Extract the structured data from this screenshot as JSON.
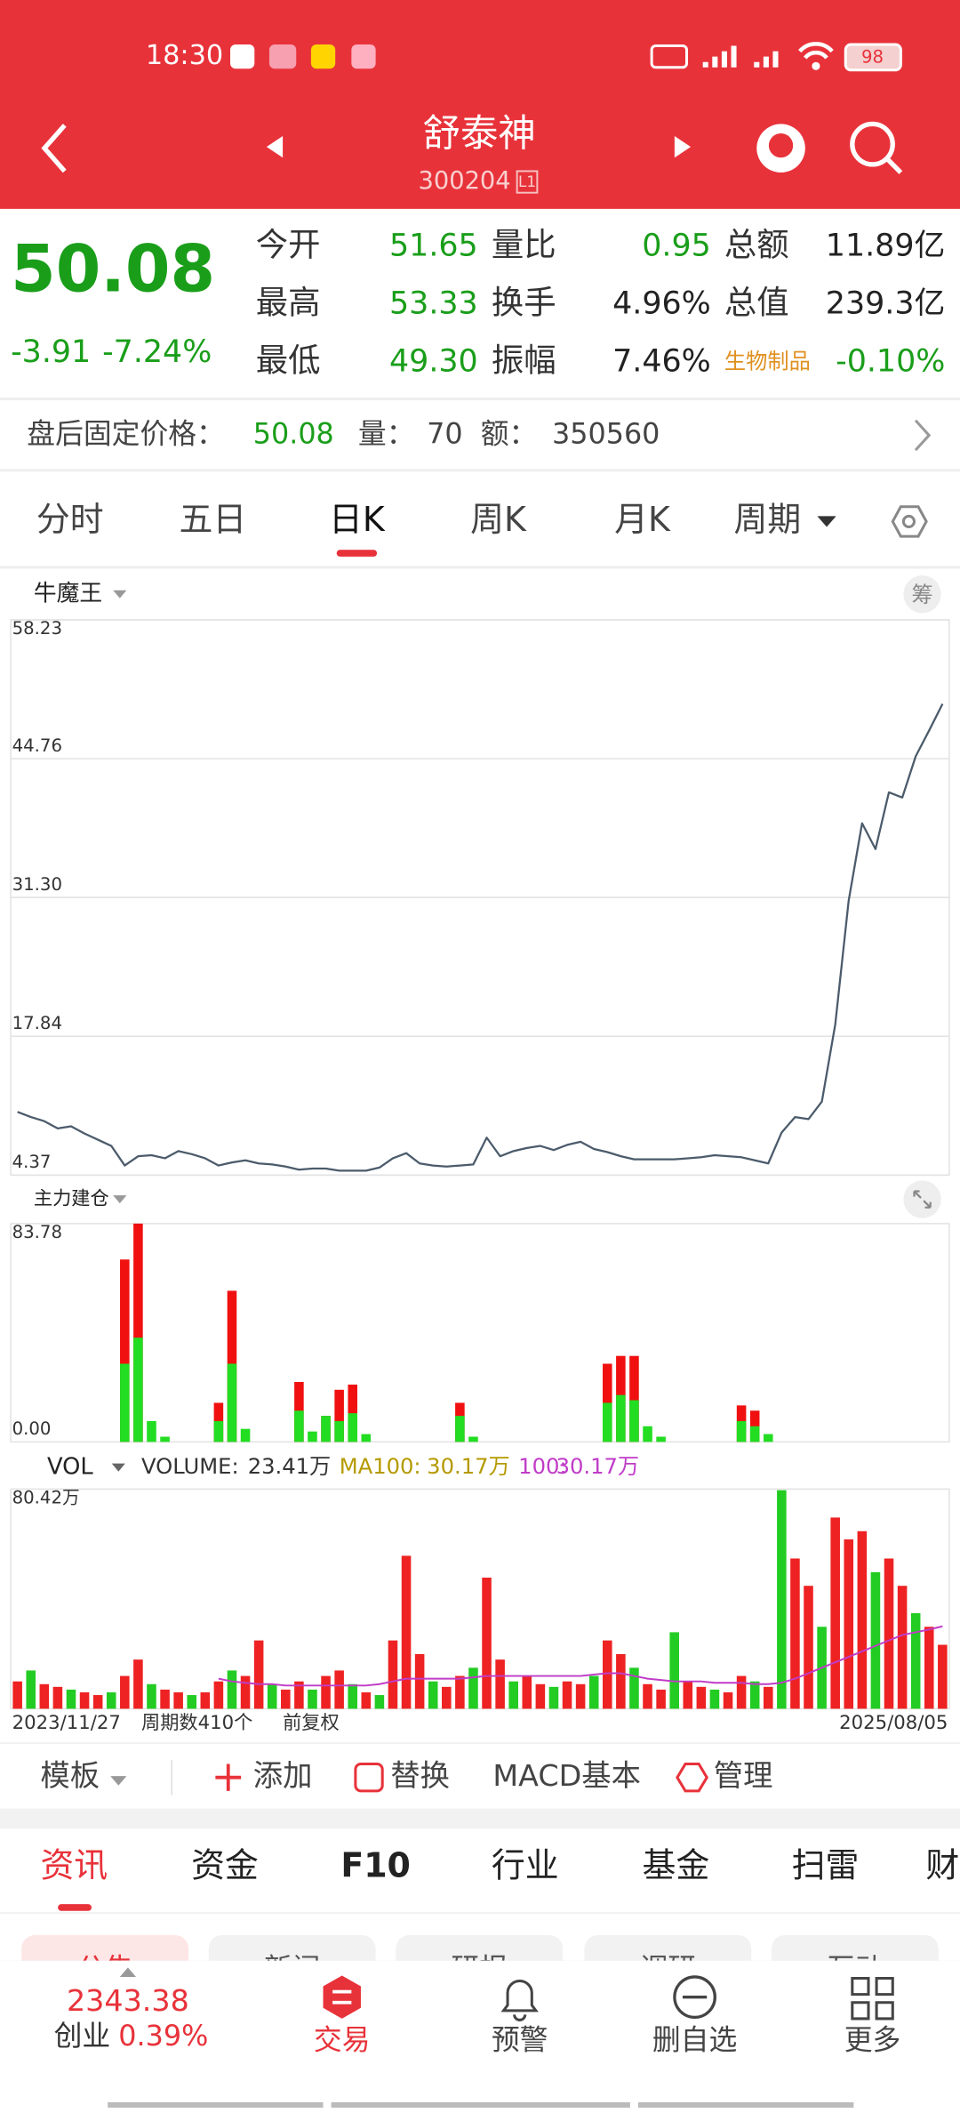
{
  "status_bar": {
    "time": "18:30",
    "battery": "98"
  },
  "header": {
    "title": "舒泰神",
    "code": "300204",
    "badge": "L1"
  },
  "quote": {
    "price": "50.08",
    "change": "-3.91",
    "change_pct": "-7.24%",
    "rows": [
      [
        {
          "label": "今开",
          "value": "51.65"
        },
        {
          "label": "量比",
          "value": "0.95"
        },
        {
          "label": "总额",
          "value": "11.89亿"
        }
      ],
      [
        {
          "label": "最高",
          "value": "53.33"
        },
        {
          "label": "换手",
          "value": "4.96%"
        },
        {
          "label": "总值",
          "value": "239.3亿"
        }
      ],
      [
        {
          "label": "最低",
          "value": "49.30"
        },
        {
          "label": "振幅",
          "value": "7.46%"
        },
        {
          "label": "生物制品",
          "value": "-0.10%"
        }
      ]
    ]
  },
  "after_hours": {
    "label": "盘后固定价格：",
    "price": "50.08",
    "volume_label": "量：",
    "volume": "70",
    "amount_label": "额：",
    "amount": "350560"
  },
  "period_tabs": [
    "分时",
    "五日",
    "日K",
    "周K",
    "月K",
    "周期"
  ],
  "chart_data": [
    {
      "type": "line",
      "indicator": "牛魔王",
      "badge": "筹",
      "color": "#4b5b6b",
      "grid": true,
      "ylim": [
        4.37,
        58.23
      ],
      "yticks": [
        4.37,
        17.84,
        {
          "value": 31.3,
          "label": "31.30"
        },
        44.76,
        58.23
      ],
      "values": [
        10.5,
        10.0,
        9.6,
        8.9,
        9.1,
        8.4,
        7.8,
        7.2,
        5.3,
        6.2,
        6.3,
        6.0,
        6.7,
        6.4,
        6.0,
        5.3,
        5.6,
        5.8,
        5.5,
        5.4,
        5.2,
        4.9,
        5.0,
        5.0,
        4.8,
        4.8,
        4.8,
        5.1,
        6.0,
        6.5,
        5.5,
        5.3,
        5.2,
        5.3,
        5.4,
        8.0,
        6.2,
        6.7,
        7.0,
        7.2,
        6.8,
        7.3,
        7.6,
        6.9,
        6.6,
        6.2,
        5.9,
        5.9,
        5.9,
        5.9,
        6.0,
        6.1,
        6.3,
        6.2,
        6.1,
        5.8,
        5.5,
        8.5,
        10.0,
        9.8,
        11.5,
        19.0,
        31.0,
        38.5,
        36.0,
        41.5,
        41.0,
        45.0,
        47.5,
        50.08
      ]
    },
    {
      "type": "bar",
      "indicator": "主力建仓",
      "grid": false,
      "ylim": [
        0,
        83.78
      ],
      "yticks": [
        {
          "value": 0,
          "label": "0.00"
        },
        83.78
      ],
      "series": [
        {
          "color": "#f01010",
          "values": [
            0,
            0,
            0,
            0,
            0,
            0,
            0,
            0,
            70,
            83.78,
            0,
            0,
            0,
            0,
            0,
            15,
            58,
            0,
            0,
            0,
            0,
            23,
            0,
            10,
            20,
            22,
            0,
            0,
            0,
            0,
            0,
            0,
            0,
            15,
            0,
            0,
            0,
            0,
            0,
            0,
            0,
            0,
            0,
            0,
            30,
            33,
            33,
            0,
            0,
            0,
            0,
            0,
            0,
            0,
            14,
            12,
            0,
            0,
            0,
            0,
            0,
            0,
            0,
            0,
            0,
            0,
            0,
            0,
            0,
            0
          ]
        },
        {
          "color": "#22dd22",
          "values": [
            0,
            0,
            0,
            0,
            0,
            0,
            0,
            0,
            30,
            40,
            8,
            2,
            0,
            0,
            0,
            8,
            30,
            5,
            0,
            0,
            0,
            12,
            4,
            10,
            8,
            11,
            3,
            0,
            0,
            0,
            0,
            0,
            0,
            10,
            2,
            0,
            0,
            0,
            0,
            0,
            0,
            0,
            0,
            0,
            15,
            18,
            16,
            6,
            2,
            0,
            0,
            0,
            0,
            0,
            8,
            6,
            3,
            0,
            0,
            0,
            0,
            0,
            0,
            0,
            0,
            0,
            0,
            0,
            0,
            0
          ]
        }
      ]
    },
    {
      "type": "bar",
      "indicator": "VOL",
      "grid": false,
      "legend": [
        {
          "label": "VOLUME:",
          "value": "23.41万",
          "color": "#333333"
        },
        {
          "label": "MA100:",
          "value": "30.17万",
          "color": "#b59a00"
        },
        {
          "label": "100:",
          "value": "30.17万",
          "color": "#c03cc8"
        }
      ],
      "ylim": [
        0,
        80.42
      ],
      "yticks": [
        {
          "value": 80.42,
          "label": "80.42万"
        }
      ],
      "x_labels": [
        "2023/11/27",
        "周期数410个",
        "前复权",
        "2025/08/05"
      ],
      "series": [
        {
          "color": "#ee2222",
          "values": [
            10,
            null,
            9,
            8,
            null,
            6,
            5,
            null,
            12,
            18,
            null,
            7,
            6,
            null,
            6,
            10,
            null,
            12,
            25,
            null,
            7,
            10,
            null,
            12,
            14,
            null,
            6,
            null,
            25,
            56,
            20,
            null,
            8,
            12,
            null,
            48,
            18,
            null,
            12,
            9,
            null,
            10,
            9,
            null,
            25,
            20,
            null,
            9,
            7,
            null,
            10,
            8,
            null,
            6,
            12,
            null,
            8,
            null,
            55,
            45,
            null,
            70,
            62,
            65,
            null,
            55,
            45,
            null,
            30,
            23.41
          ]
        },
        {
          "color": "#22cc22",
          "values": [
            null,
            14,
            null,
            null,
            7,
            null,
            null,
            6,
            null,
            null,
            9,
            null,
            null,
            5,
            null,
            null,
            14,
            null,
            null,
            9,
            null,
            null,
            7,
            null,
            null,
            9,
            null,
            5,
            null,
            null,
            null,
            10,
            null,
            null,
            15,
            null,
            null,
            10,
            null,
            null,
            8,
            null,
            null,
            12,
            null,
            null,
            15,
            null,
            null,
            28,
            null,
            null,
            7,
            null,
            null,
            10,
            null,
            80,
            null,
            null,
            30,
            null,
            null,
            null,
            50,
            null,
            null,
            35,
            null,
            null
          ]
        },
        {
          "type": "line",
          "color": "#c03cc8",
          "values": [
            null,
            null,
            null,
            null,
            null,
            null,
            null,
            null,
            null,
            null,
            null,
            null,
            null,
            null,
            null,
            11,
            10,
            9.5,
            9,
            9,
            8.5,
            8.5,
            8.5,
            8.5,
            8.5,
            8.5,
            8.5,
            9,
            10,
            11,
            11,
            11,
            11,
            11,
            11.5,
            12,
            12,
            12,
            12,
            12,
            12,
            12,
            12,
            12.5,
            13,
            13,
            12,
            11,
            10.5,
            10,
            10,
            10,
            9.5,
            9.5,
            9.5,
            9,
            9,
            9.5,
            11,
            13,
            15,
            17,
            19,
            21,
            23,
            25,
            27,
            28,
            29,
            30.17
          ]
        }
      ]
    }
  ],
  "toolbar": [
    "模板",
    "添加",
    "替换",
    "MACD基本",
    "管理"
  ],
  "info_tabs": [
    "资讯",
    "资金",
    "F10",
    "行业",
    "基金",
    "扫雷",
    "财"
  ],
  "sub_tabs": [
    "公告",
    "新闻",
    "研报",
    "调研",
    "互动"
  ],
  "bottom_nav": {
    "index_value": "2343.38",
    "index_name": "创业",
    "index_pct": "0.39%",
    "items": [
      "交易",
      "预警",
      "删自选",
      "更多"
    ]
  }
}
